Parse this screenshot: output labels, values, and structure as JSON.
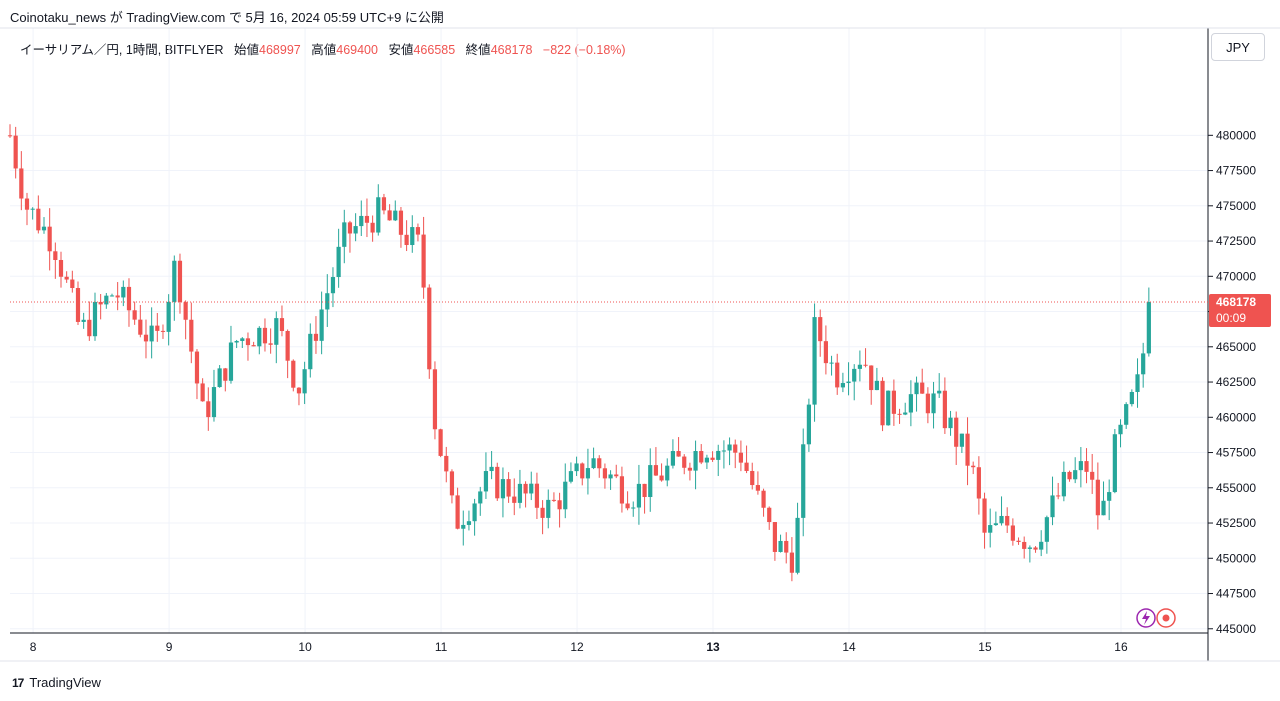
{
  "header": {
    "published_line": "Coinotaku_news が TradingView.com で 5月 16, 2024 05:59 UTC+9 に公開"
  },
  "legend": {
    "symbol": "イーサリアム／円, 1時間, BITFLYER",
    "open_label": "始値",
    "open_value": "468997",
    "high_label": "高値",
    "high_value": "469400",
    "low_label": "安値",
    "low_value": "466585",
    "close_label": "終値",
    "close_value": "468178",
    "change": "−822 (−0.18%)"
  },
  "currency_button": "JPY",
  "footer": {
    "brand": "TradingView",
    "logo_glyph": "17"
  },
  "colors": {
    "up": "#26a69a",
    "down": "#ef5350",
    "grid": "#f0f3fa",
    "axis": "#131722"
  },
  "chart_data": {
    "type": "candlestick",
    "title": "イーサリアム／円, 1時間, BITFLYER",
    "ylim": [
      444700,
      485200
    ],
    "x_range": [
      7.83,
      16.64
    ],
    "y_ticks": [
      445000,
      447500,
      450000,
      452500,
      455000,
      457500,
      460000,
      462500,
      465000,
      467500,
      470000,
      472500,
      475000,
      477500,
      480000
    ],
    "y_tick_labels": [
      "445000",
      "447500",
      "450000",
      "452500",
      "455000",
      "457500",
      "460000",
      "462500",
      "465000",
      "467500",
      "470000",
      "472500",
      "475000",
      "477500",
      "480000"
    ],
    "x_ticks": [
      8,
      9,
      10,
      11,
      12,
      13,
      14,
      15,
      16
    ],
    "x_tick_labels": [
      "8",
      "9",
      "10",
      "11",
      "12",
      "13",
      "14",
      "15",
      "16"
    ],
    "x_tick_bold": [
      "13"
    ],
    "last_price": {
      "value": 468178,
      "label": "468178",
      "countdown": "00:09"
    },
    "grid": true,
    "anchors": [
      [
        7.83,
        480000
      ],
      [
        7.95,
        475000
      ],
      [
        8.15,
        472500
      ],
      [
        8.35,
        466000
      ],
      [
        8.6,
        469000
      ],
      [
        8.9,
        465000
      ],
      [
        9.05,
        471000
      ],
      [
        9.25,
        460000
      ],
      [
        9.5,
        465500
      ],
      [
        9.8,
        466500
      ],
      [
        9.95,
        462000
      ],
      [
        10.1,
        467000
      ],
      [
        10.3,
        473000
      ],
      [
        10.55,
        474500
      ],
      [
        10.85,
        472000
      ],
      [
        10.95,
        460000
      ],
      [
        11.1,
        452500
      ],
      [
        11.35,
        455500
      ],
      [
        11.6,
        454500
      ],
      [
        11.8,
        453500
      ],
      [
        12.1,
        457000
      ],
      [
        12.4,
        454500
      ],
      [
        12.7,
        456500
      ],
      [
        12.95,
        458000
      ],
      [
        13.2,
        457500
      ],
      [
        13.45,
        451000
      ],
      [
        13.6,
        450000
      ],
      [
        13.75,
        466500
      ],
      [
        13.9,
        463000
      ],
      [
        14.1,
        464500
      ],
      [
        14.25,
        460500
      ],
      [
        14.45,
        461500
      ],
      [
        14.65,
        461000
      ],
      [
        14.9,
        456500
      ],
      [
        15.0,
        451500
      ],
      [
        15.15,
        452500
      ],
      [
        15.35,
        451000
      ],
      [
        15.6,
        455500
      ],
      [
        15.75,
        456500
      ],
      [
        15.85,
        452500
      ],
      [
        15.95,
        457500
      ],
      [
        16.15,
        463000
      ],
      [
        16.2,
        469000
      ],
      [
        16.22,
        468178
      ]
    ]
  }
}
